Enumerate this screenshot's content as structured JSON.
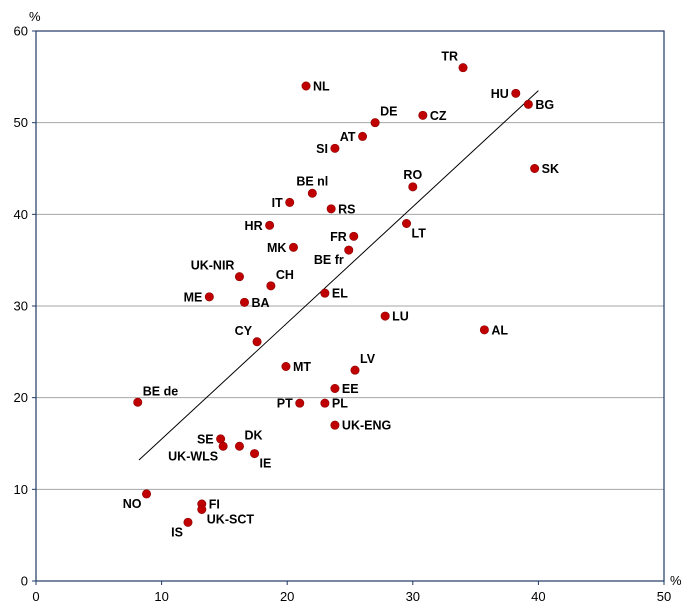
{
  "chart_data": {
    "type": "scatter",
    "title": "",
    "xlabel": "",
    "ylabel": "",
    "x_unit": "%",
    "y_unit": "%",
    "xlim": [
      0,
      50
    ],
    "ylim": [
      0,
      60
    ],
    "xticks": [
      0,
      10,
      20,
      30,
      40,
      50
    ],
    "yticks": [
      0,
      10,
      20,
      30,
      40,
      50,
      60
    ],
    "grid": "horizontal",
    "legend": "none",
    "marker_color": "#C00000",
    "trendline_color": "#000000",
    "trendline": {
      "x": [
        8.2,
        40.0
      ],
      "y": [
        13.2,
        53.5
      ]
    },
    "points": [
      {
        "label": "TR",
        "x": 34.0,
        "y": 56.0,
        "label_pos": "above-left"
      },
      {
        "label": "HU",
        "x": 38.2,
        "y": 53.2,
        "label_pos": "left"
      },
      {
        "label": "BG",
        "x": 39.2,
        "y": 52.0,
        "label_pos": "right"
      },
      {
        "label": "NL",
        "x": 21.5,
        "y": 54.0,
        "label_pos": "right"
      },
      {
        "label": "CZ",
        "x": 30.8,
        "y": 50.8,
        "label_pos": "right"
      },
      {
        "label": "DE",
        "x": 27.0,
        "y": 50.0,
        "label_pos": "above-right"
      },
      {
        "label": "AT",
        "x": 26.0,
        "y": 48.5,
        "label_pos": "left"
      },
      {
        "label": "SI",
        "x": 23.8,
        "y": 47.2,
        "label_pos": "left"
      },
      {
        "label": "SK",
        "x": 39.7,
        "y": 45.0,
        "label_pos": "right"
      },
      {
        "label": "RO",
        "x": 30.0,
        "y": 43.0,
        "label_pos": "above"
      },
      {
        "label": "BE nl",
        "x": 22.0,
        "y": 42.3,
        "label_pos": "above"
      },
      {
        "label": "IT",
        "x": 20.2,
        "y": 41.3,
        "label_pos": "left"
      },
      {
        "label": "RS",
        "x": 23.5,
        "y": 40.6,
        "label_pos": "right"
      },
      {
        "label": "LT",
        "x": 29.5,
        "y": 39.0,
        "label_pos": "below-right"
      },
      {
        "label": "HR",
        "x": 18.6,
        "y": 38.8,
        "label_pos": "left"
      },
      {
        "label": "FR",
        "x": 25.3,
        "y": 37.6,
        "label_pos": "left"
      },
      {
        "label": "MK",
        "x": 20.5,
        "y": 36.4,
        "label_pos": "left"
      },
      {
        "label": "BE fr",
        "x": 24.9,
        "y": 36.1,
        "label_pos": "below-left"
      },
      {
        "label": "UK-NIR",
        "x": 16.2,
        "y": 33.2,
        "label_pos": "above-left"
      },
      {
        "label": "CH",
        "x": 18.7,
        "y": 32.2,
        "label_pos": "above-right"
      },
      {
        "label": "ME",
        "x": 13.8,
        "y": 31.0,
        "label_pos": "left"
      },
      {
        "label": "BA",
        "x": 16.6,
        "y": 30.4,
        "label_pos": "right"
      },
      {
        "label": "EL",
        "x": 23.0,
        "y": 31.4,
        "label_pos": "right"
      },
      {
        "label": "LU",
        "x": 27.8,
        "y": 28.9,
        "label_pos": "right"
      },
      {
        "label": "AL",
        "x": 35.7,
        "y": 27.4,
        "label_pos": "right"
      },
      {
        "label": "CY",
        "x": 17.6,
        "y": 26.1,
        "label_pos": "above-left"
      },
      {
        "label": "MT",
        "x": 19.9,
        "y": 23.4,
        "label_pos": "right"
      },
      {
        "label": "LV",
        "x": 25.4,
        "y": 23.0,
        "label_pos": "above-right"
      },
      {
        "label": "EE",
        "x": 23.8,
        "y": 21.0,
        "label_pos": "right"
      },
      {
        "label": "BE de",
        "x": 8.1,
        "y": 19.5,
        "label_pos": "above-right"
      },
      {
        "label": "PT",
        "x": 21.0,
        "y": 19.4,
        "label_pos": "left"
      },
      {
        "label": "PL",
        "x": 23.0,
        "y": 19.4,
        "label_pos": "right"
      },
      {
        "label": "UK-ENG",
        "x": 23.8,
        "y": 17.0,
        "label_pos": "right"
      },
      {
        "label": "SE",
        "x": 14.7,
        "y": 15.5,
        "label_pos": "left"
      },
      {
        "label": "DK",
        "x": 16.2,
        "y": 14.7,
        "label_pos": "above-right"
      },
      {
        "label": "UK-WLS",
        "x": 14.9,
        "y": 14.7,
        "label_pos": "below-left"
      },
      {
        "label": "IE",
        "x": 17.4,
        "y": 13.9,
        "label_pos": "below-right"
      },
      {
        "label": "NO",
        "x": 8.8,
        "y": 9.5,
        "label_pos": "below-left"
      },
      {
        "label": "FI",
        "x": 13.2,
        "y": 8.4,
        "label_pos": "right"
      },
      {
        "label": "UK-SCT",
        "x": 13.2,
        "y": 7.8,
        "label_pos": "below-right"
      },
      {
        "label": "IS",
        "x": 12.1,
        "y": 6.4,
        "label_pos": "below-left"
      }
    ]
  }
}
